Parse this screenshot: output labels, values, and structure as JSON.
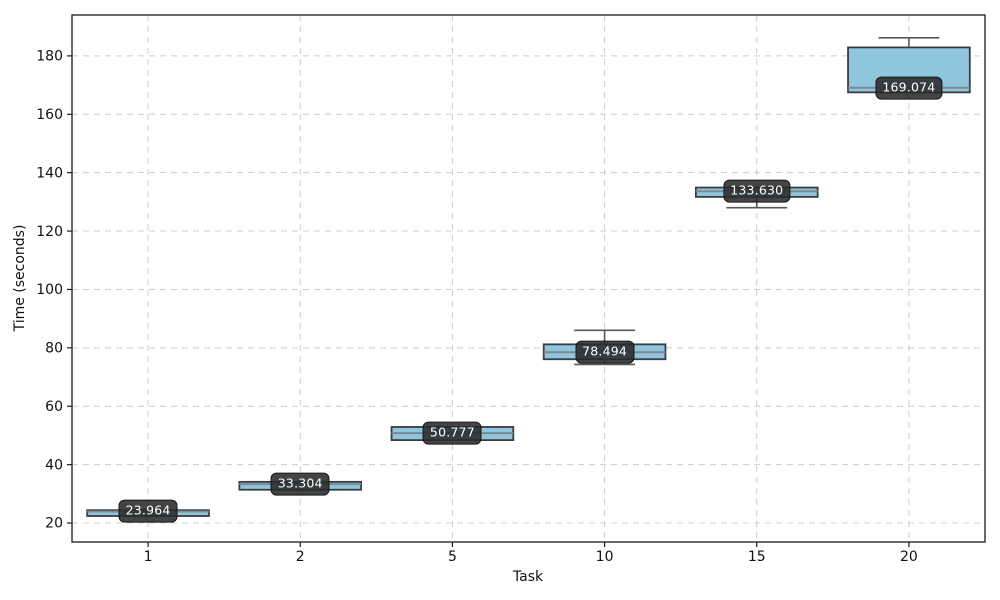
{
  "figure": {
    "background": "#ffffff"
  },
  "chart_data": {
    "type": "box",
    "title": "",
    "xlabel": "Task",
    "ylabel": "Time (seconds)",
    "categories": [
      "1",
      "2",
      "5",
      "10",
      "15",
      "20"
    ],
    "xlim": [
      0.5,
      6.5
    ],
    "ylim": [
      13.5,
      194.0
    ],
    "yticks": [
      20,
      40,
      60,
      80,
      100,
      120,
      140,
      160,
      180
    ],
    "grid": {
      "visible": true,
      "style": "dashed",
      "color": "#cccccc"
    },
    "legend": "none",
    "box_width": 0.8,
    "cap_width": 0.4,
    "colors": {
      "box_fill": "#8fc6dd",
      "box_edge": "#3a3d40",
      "median_line": "#7d8a93",
      "whisker": "#55595d",
      "label_bg": "rgba(42,42,42,0.88)",
      "label_text": "#ffffff"
    },
    "series": [
      {
        "category": "1",
        "pos": 1,
        "whislo": 22.4,
        "q1": 22.4,
        "med": 23.964,
        "q3": 24.4,
        "whishi": 24.4,
        "median_label": "23.964"
      },
      {
        "category": "2",
        "pos": 2,
        "whislo": 31.4,
        "q1": 31.4,
        "med": 33.304,
        "q3": 34.1,
        "whishi": 34.1,
        "median_label": "33.304"
      },
      {
        "category": "5",
        "pos": 3,
        "whislo": 48.4,
        "q1": 48.4,
        "med": 50.777,
        "q3": 52.9,
        "whishi": 52.9,
        "median_label": "50.777"
      },
      {
        "category": "10",
        "pos": 4,
        "whislo": 74.3,
        "q1": 76.1,
        "med": 78.494,
        "q3": 81.2,
        "whishi": 86.0,
        "median_label": "78.494"
      },
      {
        "category": "15",
        "pos": 5,
        "whislo": 128.0,
        "q1": 131.7,
        "med": 133.63,
        "q3": 134.9,
        "whishi": 134.9,
        "median_label": "133.630"
      },
      {
        "category": "20",
        "pos": 6,
        "whislo": 167.5,
        "q1": 167.5,
        "med": 169.074,
        "q3": 182.9,
        "whishi": 186.2,
        "median_label": "169.074"
      }
    ]
  }
}
